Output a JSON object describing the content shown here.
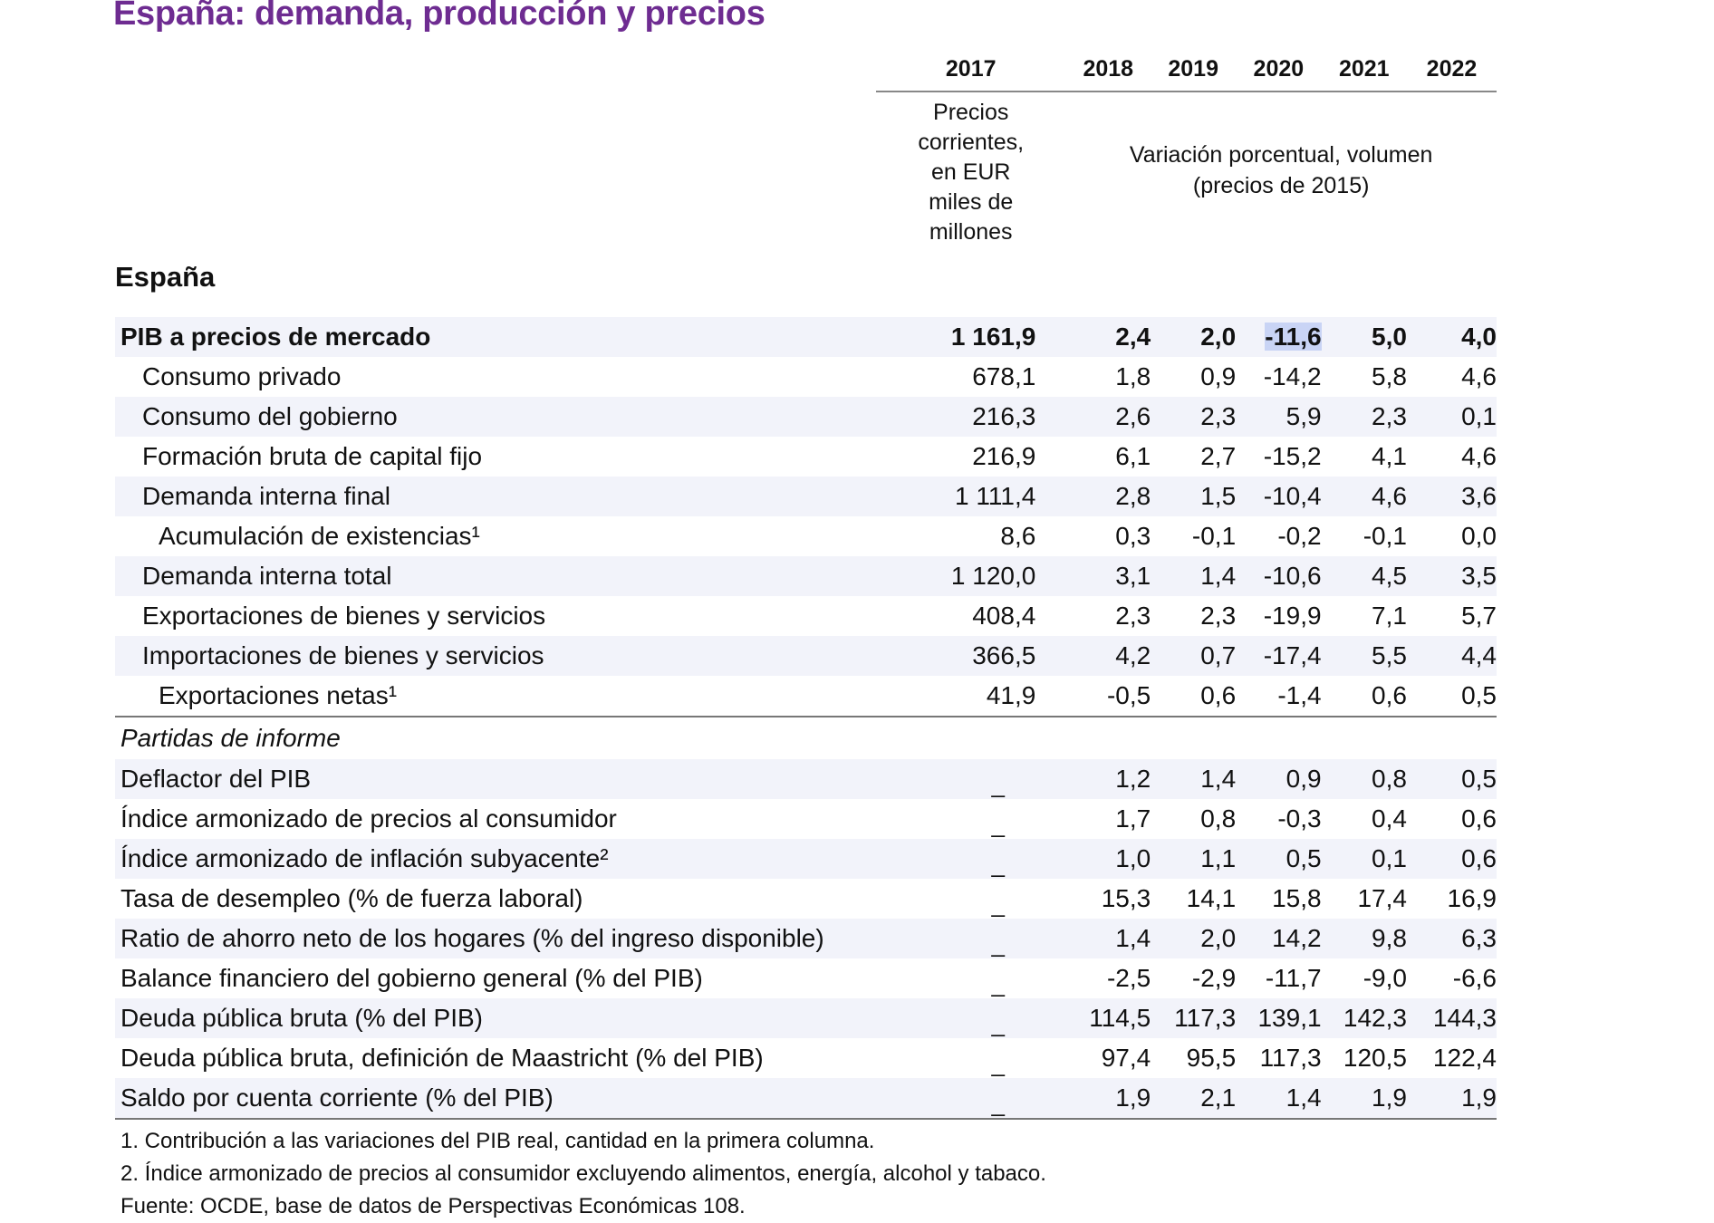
{
  "title": "España: demanda, producción y precios",
  "header": {
    "years": [
      "2017",
      "2018",
      "2019",
      "2020",
      "2021",
      "2022"
    ],
    "region": "España",
    "unit_2017": [
      "Precios",
      "corrientes,",
      "en EUR",
      "miles de",
      "millones"
    ],
    "unit_rest": [
      "Variación porcentual, volumen",
      "(precios de 2015)"
    ]
  },
  "rows": [
    {
      "label": "PIB a precios de mercado",
      "v": [
        "1 161,9",
        "2,4",
        "2,0",
        "-11,6",
        "5,0",
        "4,0"
      ]
    },
    {
      "label": "Consumo privado",
      "v": [
        "678,1",
        "1,8",
        "0,9",
        "-14,2",
        "5,8",
        "4,6"
      ]
    },
    {
      "label": "Consumo del gobierno",
      "v": [
        "216,3",
        "2,6",
        "2,3",
        "5,9",
        "2,3",
        "0,1"
      ]
    },
    {
      "label": "Formación bruta de capital fijo",
      "v": [
        "216,9",
        "6,1",
        "2,7",
        "-15,2",
        "4,1",
        "4,6"
      ]
    },
    {
      "label": "Demanda interna final",
      "v": [
        "1 111,4",
        "2,8",
        "1,5",
        "-10,4",
        "4,6",
        "3,6"
      ]
    },
    {
      "label": "Acumulación de existencias¹",
      "v": [
        "8,6",
        "0,3",
        "-0,1",
        "-0,2",
        "-0,1",
        "0,0"
      ]
    },
    {
      "label": "Demanda interna total",
      "v": [
        "1 120,0",
        "3,1",
        "1,4",
        "-10,6",
        "4,5",
        "3,5"
      ]
    },
    {
      "label": "Exportaciones de bienes y servicios",
      "v": [
        "408,4",
        "2,3",
        "2,3",
        "-19,9",
        "7,1",
        "5,7"
      ]
    },
    {
      "label": "Importaciones de bienes y servicios",
      "v": [
        "366,5",
        "4,2",
        "0,7",
        "-17,4",
        "5,5",
        "4,4"
      ]
    },
    {
      "label": "Exportaciones netas¹",
      "v": [
        "41,9",
        "-0,5",
        "0,6",
        "-1,4",
        "0,6",
        "0,5"
      ]
    }
  ],
  "memo_title": "Partidas de informe",
  "memo_dash": "_",
  "memo": [
    {
      "label": "Deflactor del PIB",
      "v": [
        "1,2",
        "1,4",
        "0,9",
        "0,8",
        "0,5"
      ]
    },
    {
      "label": "Índice armonizado de precios al consumidor",
      "v": [
        "1,7",
        "0,8",
        "-0,3",
        "0,4",
        "0,6"
      ]
    },
    {
      "label": "Índice armonizado de inflación subyacente²",
      "v": [
        "1,0",
        "1,1",
        "0,5",
        "0,1",
        "0,6"
      ]
    },
    {
      "label": "Tasa de desempleo (% de fuerza laboral)",
      "v": [
        "15,3",
        "14,1",
        "15,8",
        "17,4",
        "16,9"
      ]
    },
    {
      "label": "Ratio de ahorro neto de los hogares (% del ingreso disponible)",
      "v": [
        "1,4",
        "2,0",
        "14,2",
        "9,8",
        "6,3"
      ]
    },
    {
      "label": "Balance financiero del gobierno general (% del PIB)",
      "v": [
        "-2,5",
        "-2,9",
        "-11,7",
        "-9,0",
        "-6,6"
      ]
    },
    {
      "label": "Deuda pública bruta (% del PIB)",
      "v": [
        "114,5",
        "117,3",
        "139,1",
        "142,3",
        "144,3"
      ]
    },
    {
      "label": "Deuda pública bruta, definición de Maastricht (% del PIB)",
      "v": [
        "97,4",
        "95,5",
        "117,3",
        "120,5",
        "122,4"
      ]
    },
    {
      "label": "Saldo por cuenta corriente (% del PIB)",
      "v": [
        "1,9",
        "2,1",
        "1,4",
        "1,9",
        "1,9"
      ]
    }
  ],
  "notes": [
    "1. Contribución a las variaciones del PIB real, cantidad en la primera columna.",
    "2. Índice armonizado de precios al consumidor excluyendo alimentos, energía, alcohol y tabaco.",
    "Fuente: OCDE, base de datos de Perspectivas Económicas 108."
  ]
}
